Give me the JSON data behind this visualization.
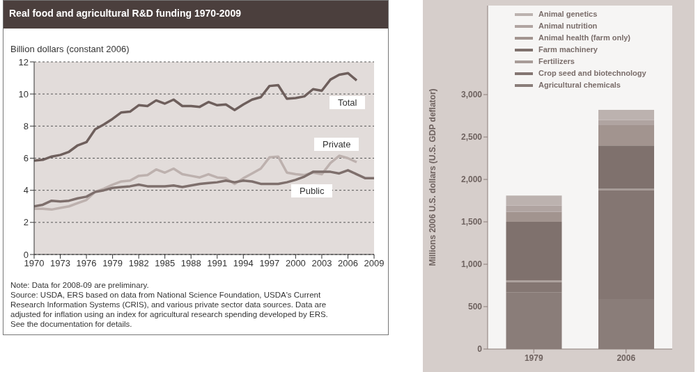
{
  "chart_data": [
    {
      "type": "line",
      "title": "Real food and agricultural R&D funding 1970-2009",
      "ylabel": "Billion dollars (constant 2006)",
      "x": [
        1970,
        1971,
        1972,
        1973,
        1974,
        1975,
        1976,
        1977,
        1978,
        1979,
        1980,
        1981,
        1982,
        1983,
        1984,
        1985,
        1986,
        1987,
        1988,
        1989,
        1990,
        1991,
        1992,
        1993,
        1994,
        1995,
        1996,
        1997,
        1998,
        1999,
        2000,
        2001,
        2002,
        2003,
        2004,
        2005,
        2006,
        2007,
        2008,
        2009
      ],
      "series": [
        {
          "name": "Total",
          "color": "#6e5f5c",
          "values": [
            5.85,
            5.9,
            6.1,
            6.2,
            6.4,
            6.8,
            7.0,
            7.8,
            8.1,
            8.45,
            8.85,
            8.9,
            9.3,
            9.25,
            9.6,
            9.4,
            9.65,
            9.25,
            9.25,
            9.2,
            9.5,
            9.3,
            9.35,
            9.0,
            9.35,
            9.65,
            9.8,
            10.5,
            10.55,
            9.7,
            9.75,
            9.85,
            10.3,
            10.2,
            10.9,
            11.2,
            11.3,
            10.85,
            null,
            null
          ]
        },
        {
          "name": "Private",
          "color": "#bdb1ae",
          "values": [
            2.85,
            2.85,
            2.8,
            2.9,
            3.0,
            3.2,
            3.4,
            3.9,
            4.1,
            4.35,
            4.55,
            4.6,
            4.9,
            4.95,
            5.3,
            5.1,
            5.35,
            5.0,
            4.9,
            4.8,
            5.0,
            4.8,
            4.75,
            4.4,
            4.75,
            5.05,
            5.35,
            6.05,
            6.1,
            5.1,
            5.0,
            4.95,
            5.1,
            5.0,
            5.7,
            6.15,
            6.0,
            5.75,
            null,
            null
          ]
        },
        {
          "name": "Public",
          "color": "#7e6f6c",
          "values": [
            3.0,
            3.1,
            3.35,
            3.3,
            3.35,
            3.5,
            3.6,
            3.9,
            4.0,
            4.15,
            4.2,
            4.25,
            4.35,
            4.25,
            4.25,
            4.25,
            4.3,
            4.2,
            4.3,
            4.4,
            4.45,
            4.5,
            4.6,
            4.5,
            4.6,
            4.55,
            4.4,
            4.4,
            4.4,
            4.5,
            4.65,
            4.85,
            5.15,
            5.15,
            5.15,
            5.05,
            5.25,
            5.0,
            4.75,
            4.75
          ]
        }
      ],
      "xlim": [
        1970,
        2009
      ],
      "xticks": [
        1970,
        1973,
        1976,
        1979,
        1982,
        1985,
        1988,
        1991,
        1994,
        1997,
        2000,
        2003,
        2006,
        2009
      ],
      "ylim": [
        0,
        12
      ],
      "yticks": [
        0,
        2,
        4,
        6,
        8,
        10,
        12
      ],
      "grid": "y",
      "legend": false,
      "annotations": [
        "Note: Data for 2008-09 are preliminary.",
        "Source: USDA, ERS based on data from National Science Foundation, USDA's Current Research Information Systems (CRIS), and various private sector data sources. Data are adjusted for inflation using an index for agricultural research spending developed by ERS. See the documentation for details."
      ]
    },
    {
      "type": "bar",
      "stacked": true,
      "ylabel": "Millions 2006 U.S. dollars (U.S. GDP deflator)",
      "categories": [
        "1979",
        "2006"
      ],
      "series": [
        {
          "name": "Agricultural chemicals",
          "color": "#8a7d79",
          "values": [
            670,
            590
          ]
        },
        {
          "name": "Crop seed and biotechnology",
          "color": "#847672",
          "values": [
            120,
            1280
          ]
        },
        {
          "name": "Fertilizers",
          "color": "#a89c98",
          "values": [
            20,
            20
          ]
        },
        {
          "name": "Farm machinery",
          "color": "#7f716d",
          "values": [
            690,
            510
          ]
        },
        {
          "name": "Animal health (farm only)",
          "color": "#a2948f",
          "values": [
            120,
            240
          ]
        },
        {
          "name": "Animal nutrition",
          "color": "#b0a4a1",
          "values": [
            70,
            60
          ]
        },
        {
          "name": "Animal genetics",
          "color": "#bcb2af",
          "values": [
            120,
            120
          ]
        }
      ],
      "ylim": [
        0,
        4050
      ],
      "yticks": [
        0,
        500,
        {
          "value": 1000,
          "label": "1,000"
        },
        {
          "value": 1500,
          "label": "1,500"
        },
        {
          "value": 2000,
          "label": "2,000"
        },
        {
          "value": 2500,
          "label": "2,500"
        },
        {
          "value": 3000,
          "label": "3,000"
        }
      ],
      "legend": "top"
    }
  ]
}
